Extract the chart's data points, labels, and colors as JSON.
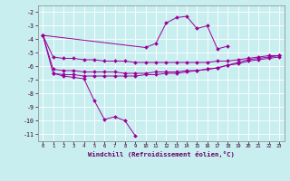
{
  "xlabel": "Windchill (Refroidissement éolien,°C)",
  "bg_color": "#c8eef0",
  "line_color": "#990099",
  "grid_color": "#ffffff",
  "xlim": [
    -0.5,
    23.5
  ],
  "ylim": [
    -11.5,
    -1.5
  ],
  "yticks": [
    -2,
    -3,
    -4,
    -5,
    -6,
    -7,
    -8,
    -9,
    -10,
    -11
  ],
  "xticks": [
    0,
    1,
    2,
    3,
    4,
    5,
    6,
    7,
    8,
    9,
    10,
    11,
    12,
    13,
    14,
    15,
    16,
    17,
    18,
    19,
    20,
    21,
    22,
    23
  ],
  "series1": [
    null,
    -6.5,
    -6.7,
    -6.8,
    -6.9,
    -8.5,
    -9.9,
    -9.7,
    -10.0,
    -11.1,
    null,
    null,
    null,
    null,
    null,
    null,
    null,
    null,
    null,
    null,
    null,
    null,
    null,
    null
  ],
  "series2": [
    -3.7,
    null,
    null,
    null,
    null,
    null,
    null,
    null,
    null,
    null,
    -4.6,
    -4.3,
    -2.8,
    -2.4,
    -2.3,
    -3.2,
    -3.0,
    -4.7,
    -4.5,
    null,
    null,
    null,
    null,
    null
  ],
  "series3": [
    -3.7,
    -5.3,
    -5.4,
    -5.4,
    -5.5,
    -5.5,
    -5.6,
    -5.6,
    -5.6,
    -5.7,
    -5.7,
    -5.7,
    -5.7,
    -5.7,
    -5.7,
    -5.7,
    -5.7,
    -5.6,
    -5.6,
    -5.5,
    -5.4,
    -5.3,
    -5.2,
    -5.2
  ],
  "series4": [
    -3.7,
    -6.2,
    -6.3,
    -6.3,
    -6.4,
    -6.4,
    -6.4,
    -6.4,
    -6.5,
    -6.5,
    -6.5,
    -6.4,
    -6.4,
    -6.4,
    -6.3,
    -6.3,
    -6.2,
    -6.1,
    -5.9,
    -5.8,
    -5.6,
    -5.5,
    -5.4,
    -5.3
  ],
  "series5": [
    -3.7,
    -6.5,
    -6.6,
    -6.6,
    -6.7,
    -6.7,
    -6.7,
    -6.7,
    -6.7,
    -6.7,
    -6.6,
    -6.6,
    -6.5,
    -6.5,
    -6.4,
    -6.3,
    -6.2,
    -6.1,
    -5.9,
    -5.7,
    -5.5,
    -5.4,
    -5.3,
    -5.2
  ]
}
